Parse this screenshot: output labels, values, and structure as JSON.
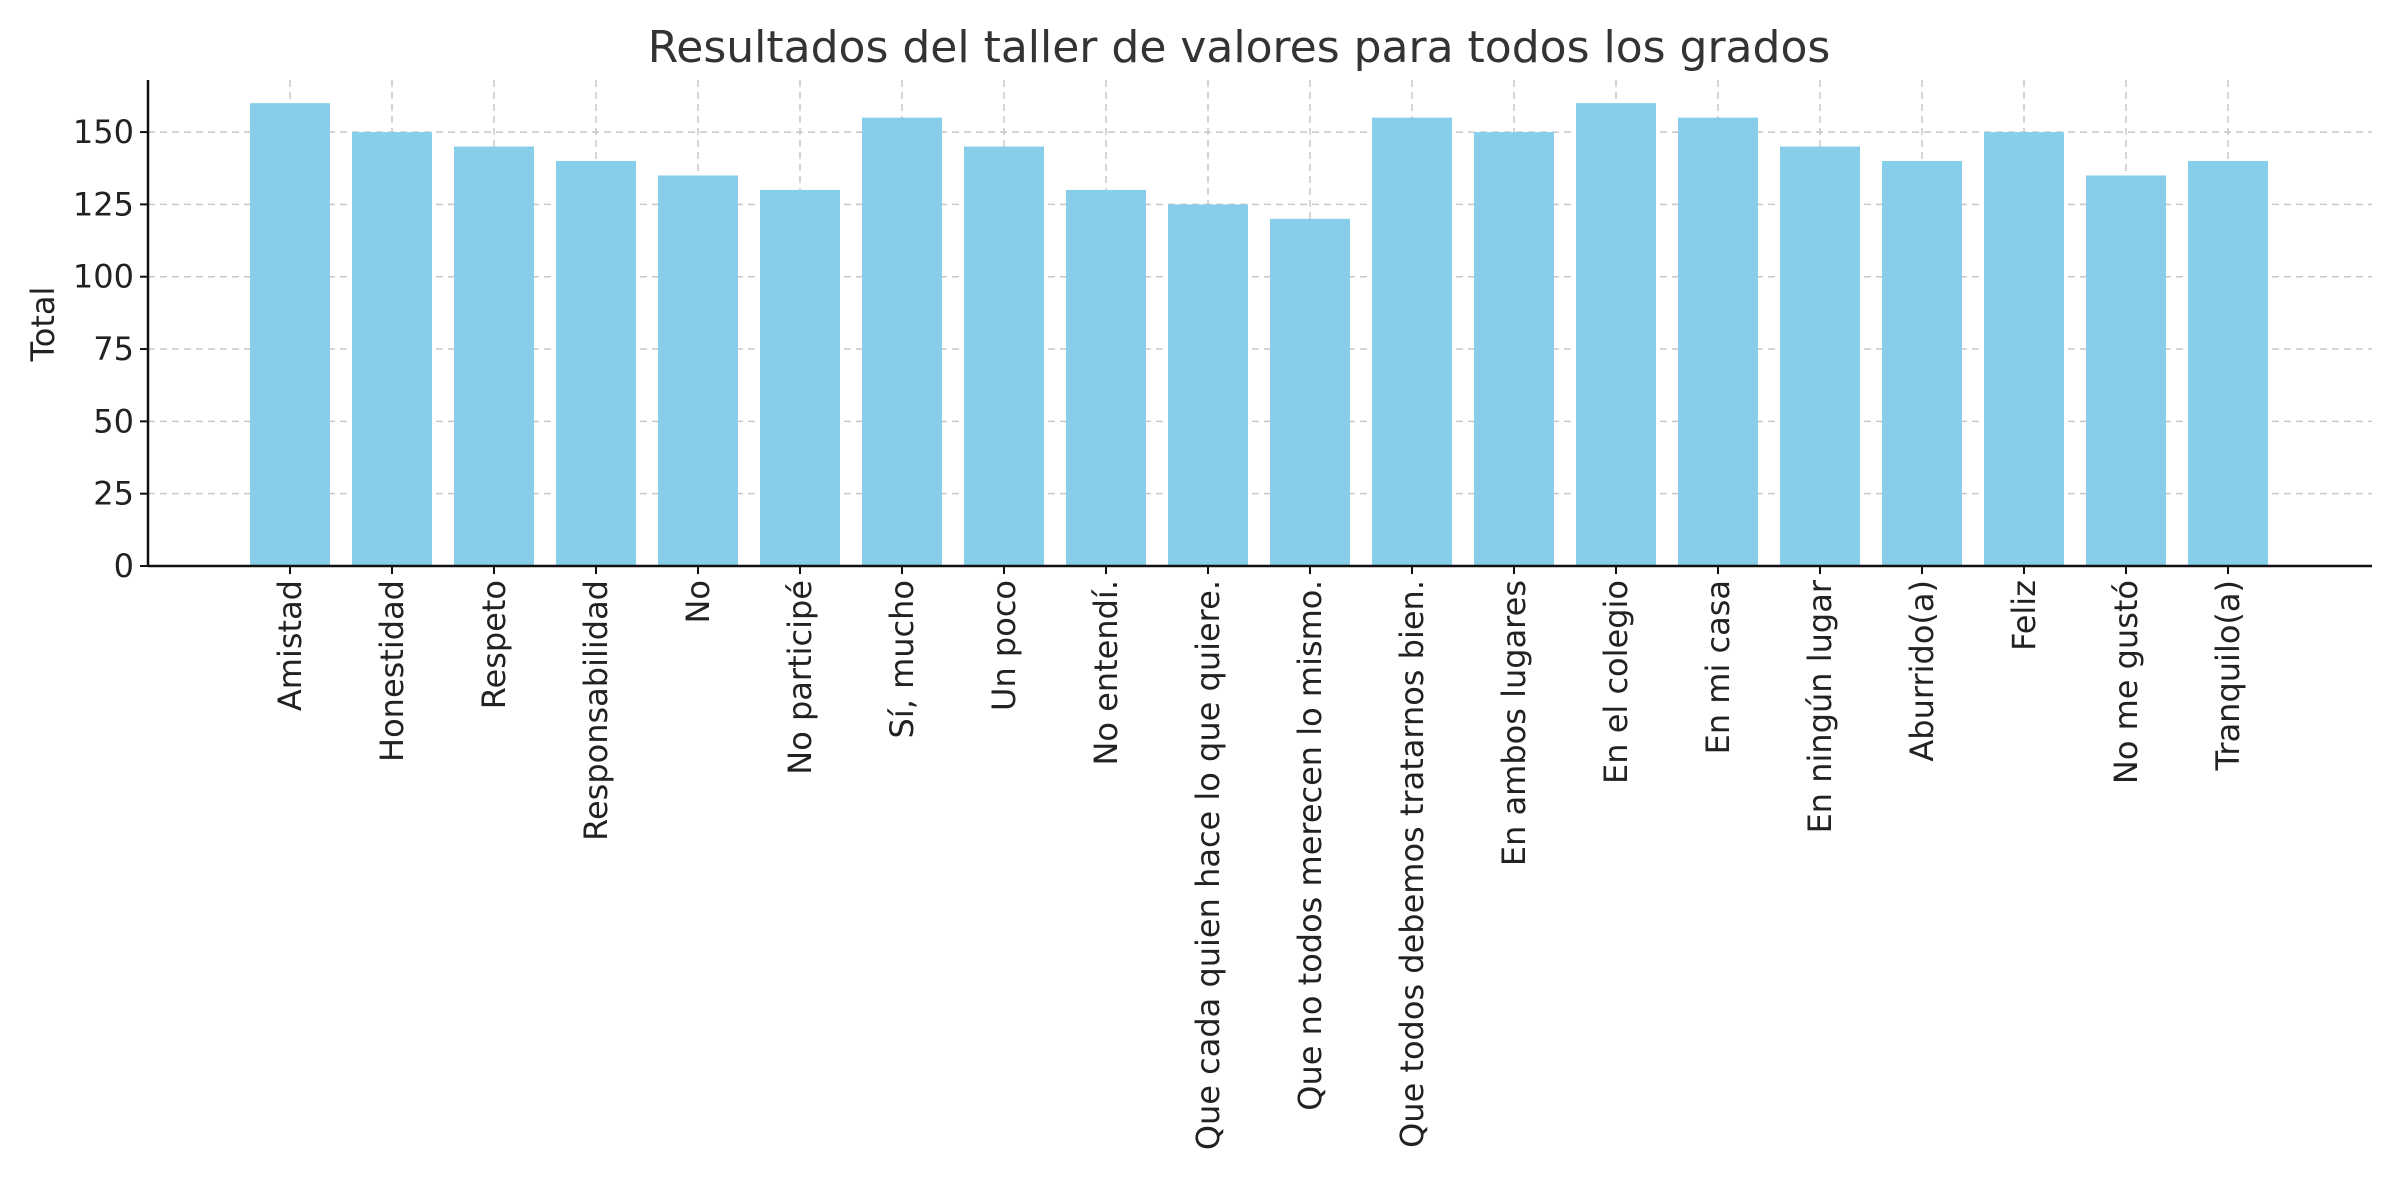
{
  "chart_data": {
    "type": "bar",
    "title": "Resultados del taller de valores para todos los grados",
    "xlabel": "",
    "ylabel": "Total",
    "ylim": [
      0,
      168
    ],
    "yticks": [
      0,
      25,
      50,
      75,
      100,
      125,
      150
    ],
    "grid": true,
    "bar_color": "#87CEEB",
    "categories": [
      "Amistad",
      "Honestidad",
      "Respeto",
      "Responsabilidad",
      "No",
      "No participé",
      "Sí, mucho",
      "Un poco",
      "No entendí.",
      "Que cada quien hace lo que quiere.",
      "Que no todos merecen lo mismo.",
      "Que todos debemos tratarnos bien.",
      "En ambos lugares",
      "En el colegio",
      "En mi casa",
      "En ningún lugar",
      "Aburrido(a)",
      "Feliz",
      "No me gustó",
      "Tranquilo(a)"
    ],
    "values": [
      160,
      150,
      145,
      140,
      135,
      130,
      155,
      145,
      130,
      125,
      120,
      155,
      150,
      160,
      155,
      145,
      140,
      150,
      135,
      140
    ]
  }
}
